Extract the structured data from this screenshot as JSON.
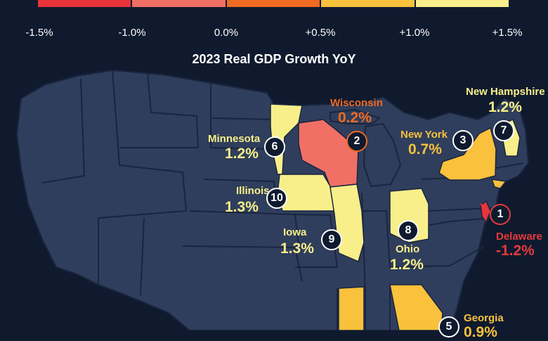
{
  "legend": {
    "colors": [
      "#e8333a",
      "#f07066",
      "#ef6a23",
      "#f9c13c",
      "#f8ef8a"
    ],
    "ticks": [
      "-1.5%",
      "-1.0%",
      "0.0%",
      "+0.5%",
      "+1.0%",
      "+1.5%"
    ]
  },
  "title": "2023 Real GDP Growth YoY",
  "map_colors": {
    "base": "#2f3e5c",
    "border": "#1a2540",
    "background": "#0f1a2e"
  },
  "states": [
    {
      "rank": "1",
      "name": "Delaware",
      "value": "-1.2%",
      "color": "#e63a3a"
    },
    {
      "rank": "2",
      "name": "Wisconsin",
      "value": "0.2%",
      "color": "#ef6a23"
    },
    {
      "rank": "3",
      "name": "New York",
      "value": "0.7%",
      "color": "#f9c13c"
    },
    {
      "rank": "5",
      "name": "Georgia",
      "value": "0.9%",
      "color": "#f9c13c"
    },
    {
      "rank": "6",
      "name": "Minnesota",
      "value": "1.2%",
      "color": "#f8ef8a"
    },
    {
      "rank": "7",
      "name": "New Hampshire",
      "value": "1.2%",
      "color": "#f8ef8a"
    },
    {
      "rank": "8",
      "name": "Ohio",
      "value": "1.2%",
      "color": "#f8ef8a"
    },
    {
      "rank": "9",
      "name": "Iowa",
      "value": "1.3%",
      "color": "#f8ef8a"
    },
    {
      "rank": "10",
      "name": "Illinois",
      "value": "1.3%",
      "color": "#f8ef8a"
    }
  ]
}
